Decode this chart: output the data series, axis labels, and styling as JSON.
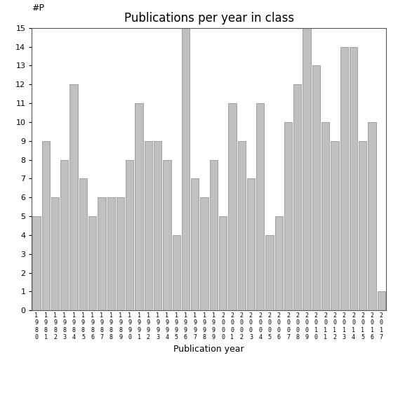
{
  "title": "Publications per year in class",
  "xlabel": "Publication year",
  "ylabel": "#P",
  "years": [
    "1980",
    "1981",
    "1982",
    "1983",
    "1984",
    "1985",
    "1986",
    "1987",
    "1988",
    "1989",
    "1990",
    "1991",
    "1992",
    "1993",
    "1994",
    "1995",
    "1996",
    "1997",
    "1998",
    "1999",
    "2000",
    "2001",
    "2002",
    "2003",
    "2004",
    "2005",
    "2006",
    "2007",
    "2008",
    "2009",
    "2010",
    "2011",
    "2012",
    "2013",
    "2014",
    "2015",
    "2016",
    "2017"
  ],
  "values": [
    5,
    9,
    6,
    8,
    12,
    7,
    5,
    6,
    6,
    6,
    8,
    11,
    9,
    9,
    8,
    4,
    15,
    7,
    6,
    8,
    5,
    11,
    9,
    7,
    11,
    4,
    5,
    10,
    12,
    15,
    13,
    10,
    9,
    14,
    14,
    9,
    10,
    1
  ],
  "bar_color": "#c0c0c0",
  "bar_edgecolor": "#888888",
  "ylim": [
    0,
    15
  ],
  "yticks": [
    0,
    1,
    2,
    3,
    4,
    5,
    6,
    7,
    8,
    9,
    10,
    11,
    12,
    13,
    14,
    15
  ],
  "background_color": "#ffffff",
  "title_fontsize": 12,
  "axis_label_fontsize": 9
}
